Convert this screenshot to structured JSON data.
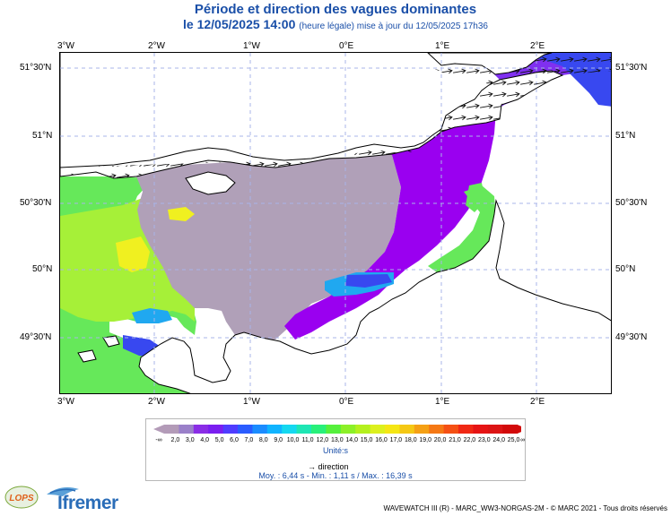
{
  "title": "Période et direction des vagues dominantes",
  "subtitle_date": "le 12/05/2025 14:00",
  "subtitle_note": "(heure légale) mise à jour du 12/05/2025 17h36",
  "axes": {
    "lon_labels": [
      "3°W",
      "2°W",
      "1°W",
      "0°E",
      "1°E",
      "2°E"
    ],
    "lat_labels": [
      "51°30'N",
      "51°N",
      "50°30'N",
      "50°N",
      "49°30'N"
    ]
  },
  "legend": {
    "low_label": "-∞",
    "high_label": "∞",
    "values": [
      "2,0",
      "3,0",
      "4,0",
      "5,0",
      "6,0",
      "7,0",
      "8,0",
      "9,0",
      "10,0",
      "11,0",
      "12,0",
      "13,0",
      "14,0",
      "15,0",
      "16,0",
      "17,0",
      "18,0",
      "19,0",
      "20,0",
      "21,0",
      "22,0",
      "23,0",
      "24,0",
      "25,0"
    ],
    "colors": [
      "#b39bb8",
      "#9a80c9",
      "#8a2de6",
      "#7a1ef0",
      "#4f3cff",
      "#2a5cff",
      "#1b8cff",
      "#10b4ff",
      "#14d8f0",
      "#1ee6b4",
      "#28f07a",
      "#55f03c",
      "#8cf028",
      "#b4f01e",
      "#dcf01e",
      "#f5e614",
      "#f5c814",
      "#f5a014",
      "#f57814",
      "#f55014",
      "#f02814",
      "#e61414",
      "#dc1414",
      "#d20a0a"
    ],
    "unit": "Unité:s",
    "direction_label": "direction"
  },
  "stats": "Moy. : 6,44 s   -   Min. : 1,11 s / Max. : 16,39 s",
  "credit": "WAVEWATCH III (R) - MARC_WW3-NORGAS-2M - © MARC 2021 - Tous droits réservés",
  "logos": {
    "lops": "LOPS",
    "ifremer": "Ifremer"
  },
  "map_colors": {
    "land": "#ffffff",
    "purple": "#9a00f0",
    "violet": "#8030f0",
    "blue": "#3848f0",
    "grey": "#b0a0b8",
    "green": "#66e85a",
    "yellowgreen": "#a6f038",
    "yellow": "#f0f020",
    "cyan": "#20a8f0",
    "coast": "#000000",
    "grid": "#a8b4e8"
  },
  "wave_dir_deg": 80
}
